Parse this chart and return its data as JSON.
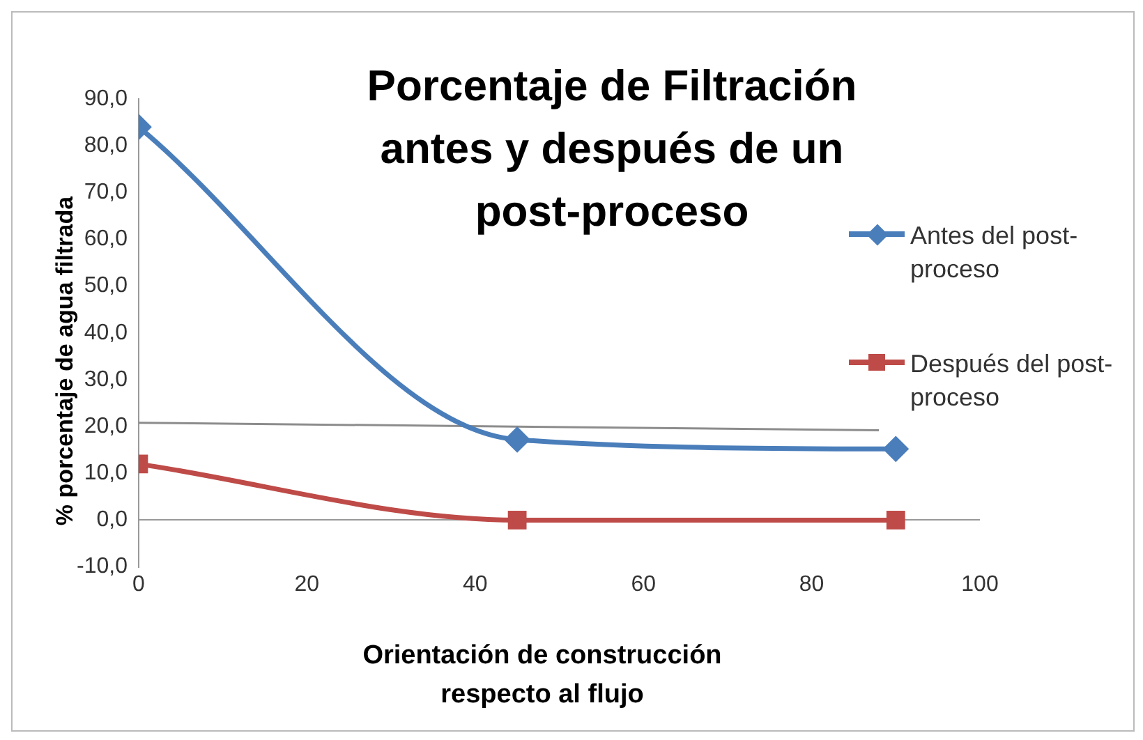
{
  "chart_data": {
    "type": "line",
    "title": "Porcentaje de Filtración antes y después de un post-proceso",
    "xlabel": "Orientación de construcción respecto al flujo",
    "ylabel": "% porcentaje de agua filtrada",
    "x": [
      0,
      45,
      90
    ],
    "series": [
      {
        "name": "Antes del post-proceso",
        "color": "#4a7ebb",
        "values": [
          84,
          17.2,
          15.2
        ],
        "marker": "diamond"
      },
      {
        "name": "Después del post-proceso",
        "color": "#be4b48",
        "values": [
          12,
          0,
          0
        ],
        "marker": "square"
      },
      {
        "color": "#8c8c8c",
        "x": [
          0,
          88
        ],
        "values": [
          20.8,
          19.2
        ],
        "marker": "none"
      }
    ],
    "xlim": [
      0,
      100
    ],
    "xticks": [
      0,
      20,
      40,
      60,
      80,
      100
    ],
    "ylim": [
      -10,
      90
    ],
    "yticks": [
      {
        "value": -10,
        "label": "-10,0"
      },
      {
        "value": 0,
        "label": "0,0"
      },
      {
        "value": 10,
        "label": "10,0"
      },
      {
        "value": 20,
        "label": "20,0"
      },
      {
        "value": 30,
        "label": "30,0"
      },
      {
        "value": 40,
        "label": "40,0"
      },
      {
        "value": 50,
        "label": "50,0"
      },
      {
        "value": 60,
        "label": "60,0"
      },
      {
        "value": 70,
        "label": "70,0"
      },
      {
        "value": 80,
        "label": "80,0"
      },
      {
        "value": 90,
        "label": "90,0"
      }
    ],
    "grid": false,
    "legend": "right"
  }
}
